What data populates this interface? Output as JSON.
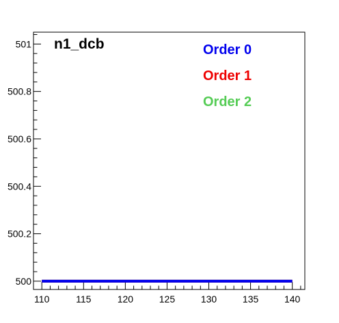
{
  "chart_data": {
    "type": "line",
    "title": "n1_dcb",
    "xlabel": "",
    "ylabel": "",
    "xlim": [
      109,
      141.5
    ],
    "ylim": [
      499.965,
      501.05
    ],
    "xticks": [
      110,
      115,
      120,
      125,
      130,
      135,
      140
    ],
    "yticks": [
      500,
      500.2,
      500.4,
      500.6,
      500.8,
      501
    ],
    "ytick_labels": [
      "500",
      "500.2",
      "500.4",
      "500.6",
      "500.8",
      "501"
    ],
    "xtick_labels": [
      "110",
      "115",
      "120",
      "125",
      "130",
      "135",
      "140"
    ],
    "grid": false,
    "legend_position": "top-right",
    "series": [
      {
        "name": "Order 0",
        "color": "#0000ee",
        "x": [
          110,
          140
        ],
        "y": [
          500,
          500
        ]
      },
      {
        "name": "Order 1",
        "color": "#ee0000",
        "x": [
          110,
          140
        ],
        "y": [
          500,
          500
        ]
      },
      {
        "name": "Order 2",
        "color": "#55cc55",
        "x": [
          110,
          140
        ],
        "y": [
          500,
          500
        ]
      }
    ]
  }
}
